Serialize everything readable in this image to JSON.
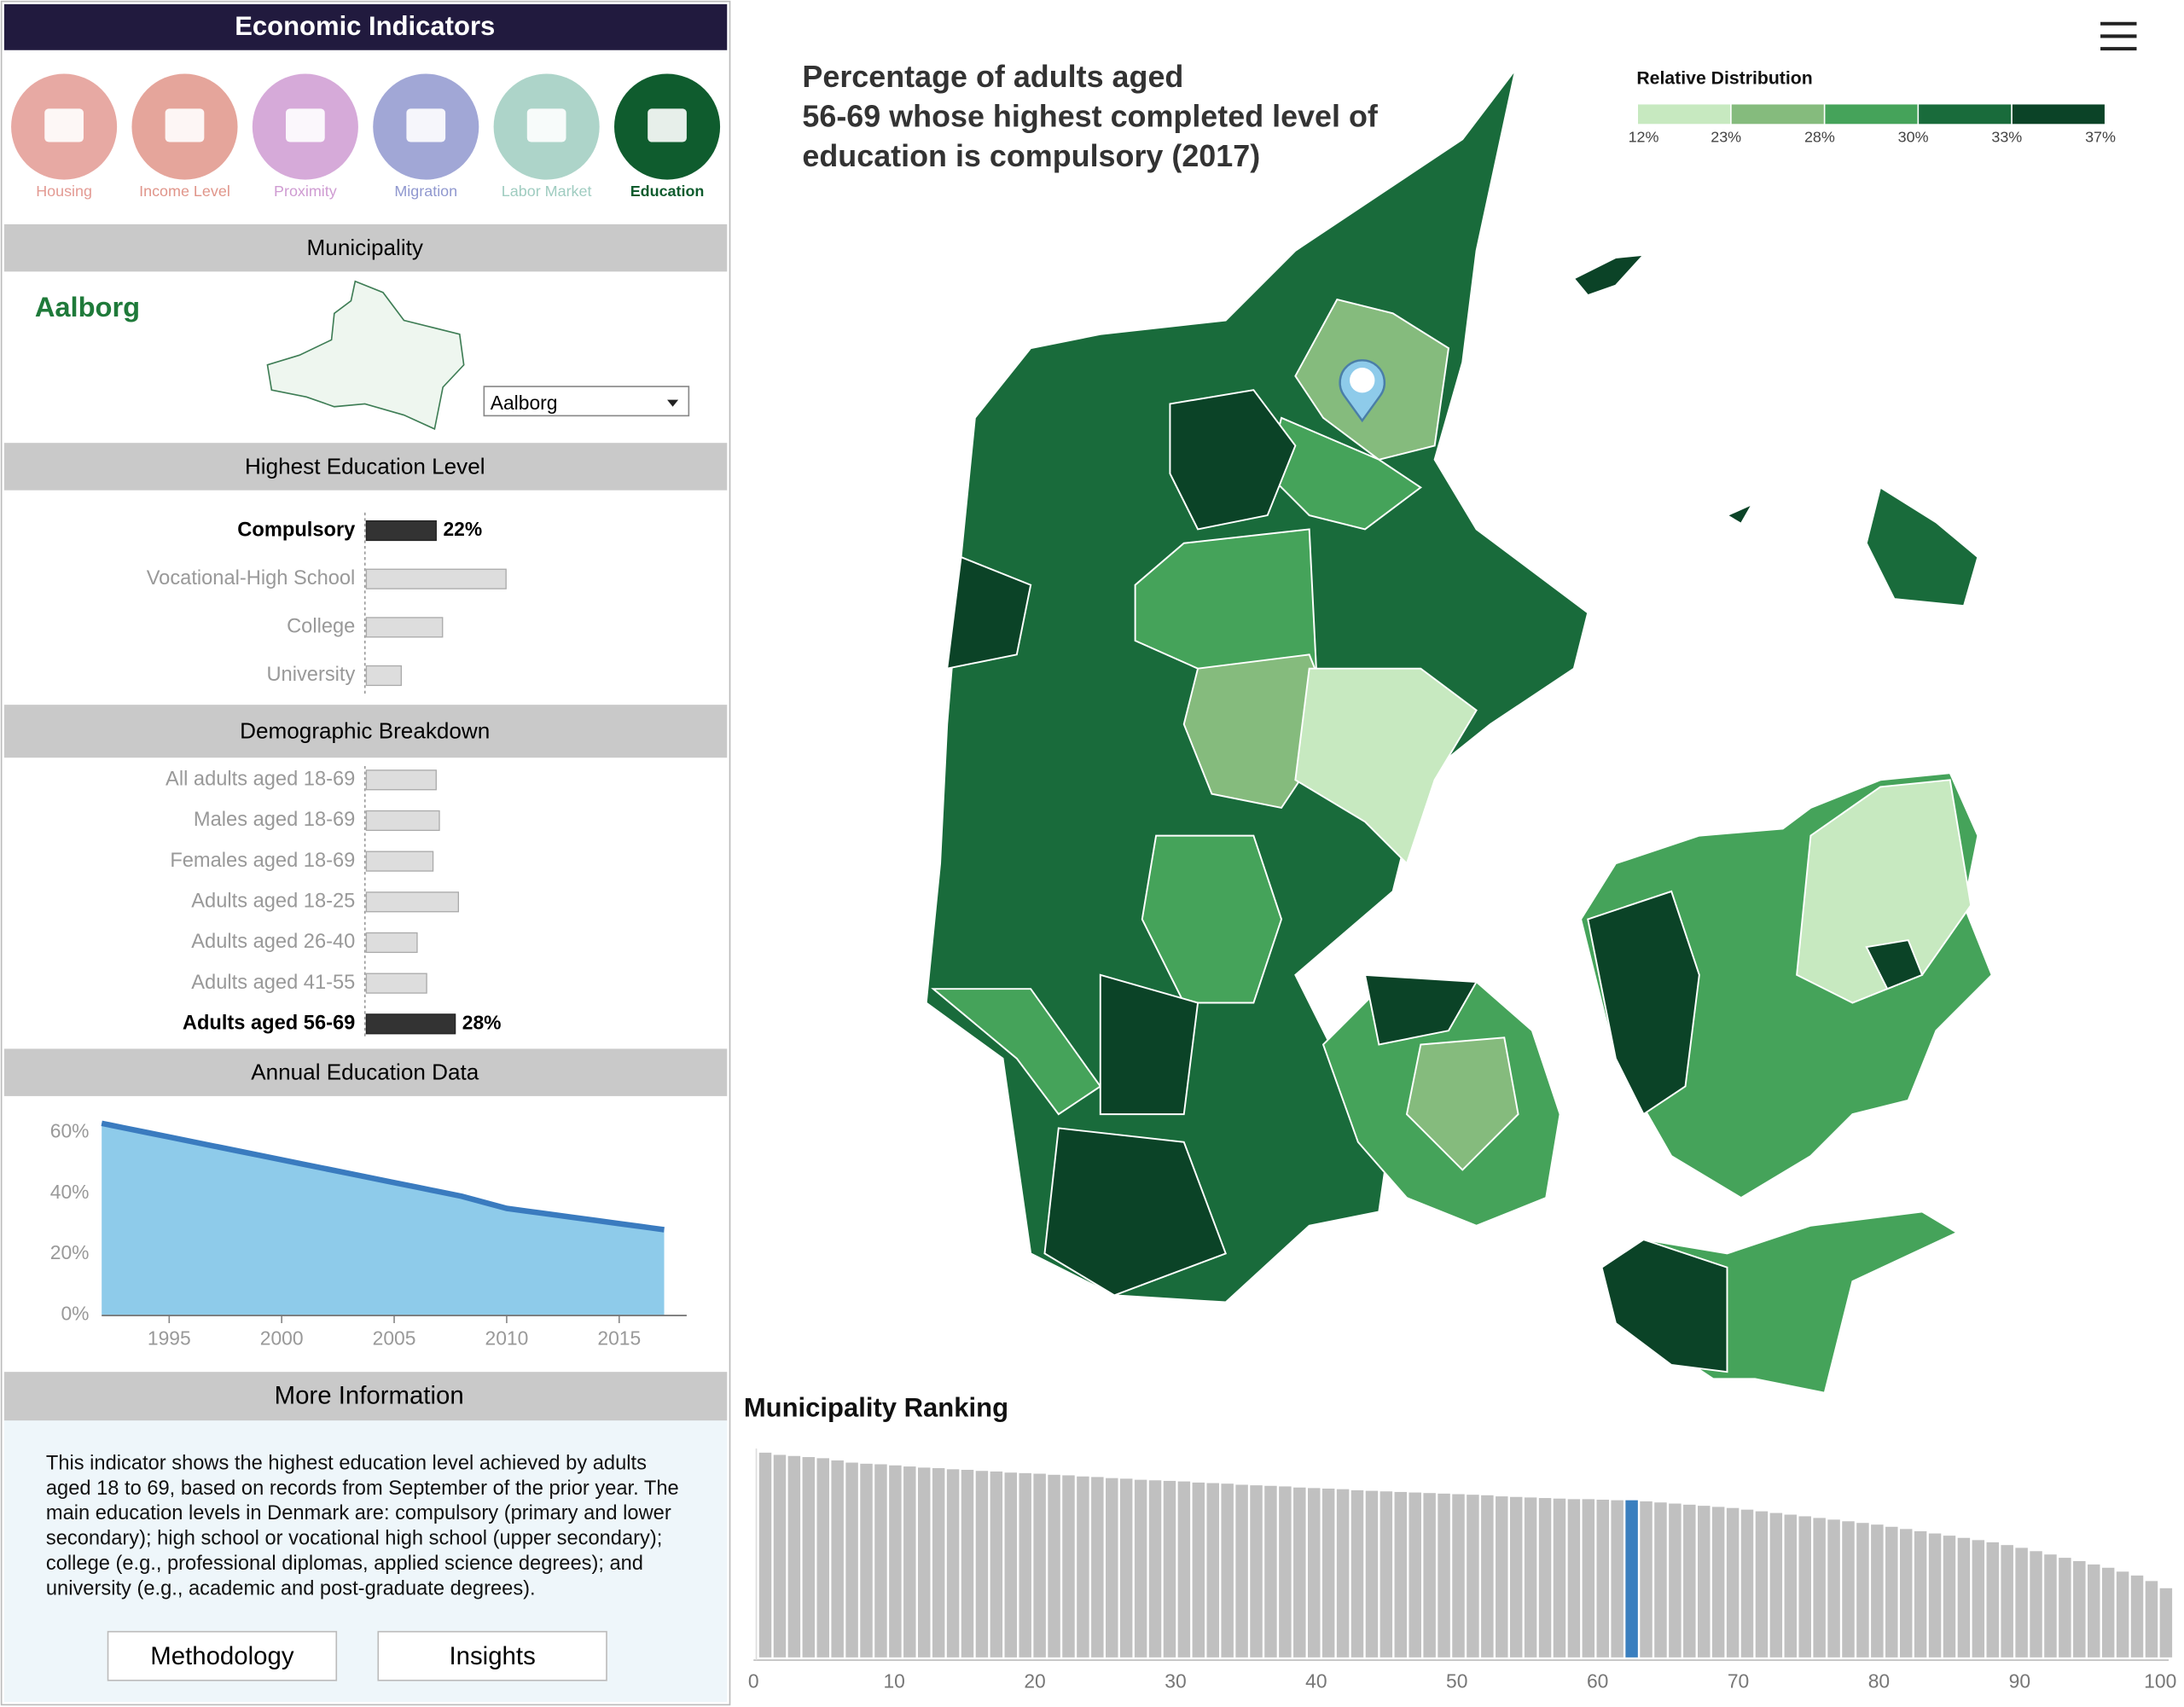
{
  "header": {
    "title": "Economic Indicators"
  },
  "nav": [
    {
      "label": "Housing",
      "color": "#e39a93"
    },
    {
      "label": "Income Level",
      "color": "#e0958a"
    },
    {
      "label": "Proximity",
      "color": "#cf9bd2"
    },
    {
      "label": "Migration",
      "color": "#9098cf"
    },
    {
      "label": "Labor Market",
      "color": "#9fccc0"
    },
    {
      "label": "Education",
      "color": "#0f5c2e"
    }
  ],
  "nav_active": 5,
  "municipality": {
    "heading": "Municipality",
    "name": "Aalborg",
    "select": "Aalborg"
  },
  "education": {
    "heading": "Highest Education Level",
    "categories": [
      "Compulsory",
      "Vocational-High School",
      "College",
      "University"
    ],
    "values": [
      22,
      44,
      24,
      11
    ],
    "value_labels": [
      "22%",
      null,
      null,
      null
    ],
    "highlight": 0
  },
  "demographic": {
    "heading": "Demographic Breakdown",
    "categories": [
      "All adults aged 18-69",
      "Males aged 18-69",
      "Females aged 18-69",
      "Adults aged 18-25",
      "Adults aged 26-40",
      "Adults aged 41-55",
      "Adults aged 56-69"
    ],
    "values": [
      22,
      23,
      21,
      29,
      16,
      19,
      28
    ],
    "value_labels": [
      null,
      null,
      null,
      null,
      null,
      null,
      "28%"
    ],
    "highlight": 6
  },
  "chart_data": [
    {
      "type": "area",
      "title": "Annual Education Data",
      "color": "#8ecbea",
      "line_color": "#3a7bbf",
      "x": [
        1992,
        1993,
        1994,
        1995,
        1996,
        1997,
        1998,
        1999,
        2000,
        2001,
        2002,
        2003,
        2004,
        2005,
        2006,
        2007,
        2008,
        2009,
        2010,
        2011,
        2012,
        2013,
        2014,
        2015,
        2016,
        2017
      ],
      "values": [
        63,
        61.5,
        60,
        58.5,
        57,
        55.5,
        54,
        52.5,
        51,
        49.5,
        48,
        46.5,
        45,
        43.5,
        42,
        40.5,
        39,
        37,
        35,
        34,
        33,
        32,
        31,
        30,
        29,
        28
      ],
      "xlim": [
        1992,
        2018
      ],
      "xticks": [
        1995,
        2000,
        2005,
        2010,
        2015
      ],
      "ylim": [
        0,
        66
      ],
      "yticks": [
        {
          "value": 0,
          "label": "0%"
        },
        {
          "value": 20,
          "label": "20%"
        },
        {
          "value": 40,
          "label": "40%"
        },
        {
          "value": 60,
          "label": "60%"
        }
      ]
    },
    {
      "type": "choropleth",
      "title": "Percentage of adults aged 56-69 whose highest completed level of education is compulsory (2017)",
      "legend_title": "Relative Distribution",
      "colors": [
        "#c7e9c0",
        "#85bb7d",
        "#45a35a",
        "#196b3b",
        "#0b4327"
      ],
      "ticks": [
        {
          "value": 12,
          "label": "12%"
        },
        {
          "value": 23,
          "label": "23%"
        },
        {
          "value": 28,
          "label": "28%"
        },
        {
          "value": 30,
          "label": "30%"
        },
        {
          "value": 33,
          "label": "33%"
        },
        {
          "value": 37,
          "label": "37%"
        }
      ]
    },
    {
      "type": "bar",
      "title": "Municipality Ranking",
      "color": "#c0c0c0",
      "highlight_color": "#3a7fbf",
      "highlight": 60,
      "values": [
        37.0,
        36.6,
        36.4,
        36.2,
        36.0,
        35.6,
        35.2,
        35.0,
        34.9,
        34.7,
        34.5,
        34.3,
        34.2,
        34.0,
        33.9,
        33.7,
        33.6,
        33.4,
        33.3,
        33.2,
        33.0,
        32.9,
        32.7,
        32.6,
        32.4,
        32.3,
        32.1,
        32.0,
        31.9,
        31.8,
        31.6,
        31.5,
        31.4,
        31.2,
        31.1,
        31.0,
        30.9,
        30.7,
        30.6,
        30.5,
        30.4,
        30.2,
        30.1,
        30.0,
        29.9,
        29.8,
        29.7,
        29.6,
        29.5,
        29.4,
        29.3,
        29.1,
        29.0,
        28.9,
        28.8,
        28.7,
        28.6,
        28.6,
        28.5,
        28.4,
        28.4,
        28.2,
        28.0,
        27.8,
        27.6,
        27.4,
        27.2,
        27.0,
        26.7,
        26.4,
        26.1,
        25.8,
        25.5,
        25.2,
        24.9,
        24.6,
        24.3,
        24.0,
        23.6,
        23.2,
        22.8,
        22.4,
        22.0,
        21.6,
        21.2,
        20.8,
        20.3,
        19.8,
        19.2,
        18.6,
        18.0,
        17.4,
        16.8,
        16.2,
        15.5,
        14.8,
        13.8,
        12.5
      ],
      "xlim": [
        0,
        100
      ],
      "xticks": [
        0,
        10,
        20,
        30,
        40,
        50,
        60,
        70,
        80,
        90,
        100
      ]
    }
  ],
  "info": {
    "heading": "More Information",
    "text": "This indicator shows the highest education level achieved by adults aged 18 to 69, based on records from September of the prior year. The main education levels in Denmark are: compulsory (primary and lower secondary); high school or vocational high school (upper secondary); college (e.g., professional diplomas, applied science degrees); and university (e.g., academic and post-graduate degrees).",
    "buttons": [
      "Methodology",
      "Insights"
    ]
  }
}
